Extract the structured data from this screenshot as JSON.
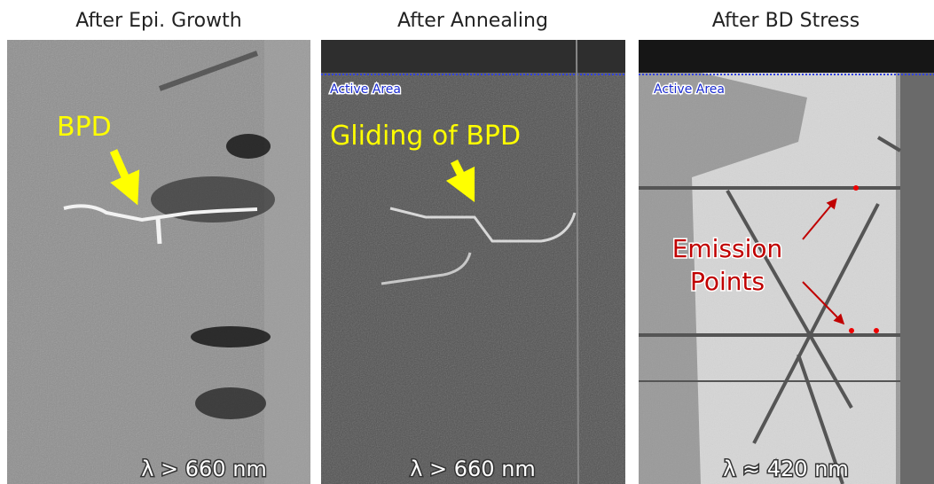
{
  "panels": [
    {
      "title": "After Epi. Growth",
      "annotation": "BPD",
      "wavelength": "λ > 660 nm"
    },
    {
      "title": "After Annealing",
      "area_label": "Active Area",
      "annotation": "Gliding of BPD",
      "wavelength": "λ > 660 nm"
    },
    {
      "title": "After BD Stress",
      "area_label": "Active Area",
      "annotation": [
        "Emission",
        "Points"
      ],
      "wavelength": "λ ≈ 420 nm"
    }
  ]
}
